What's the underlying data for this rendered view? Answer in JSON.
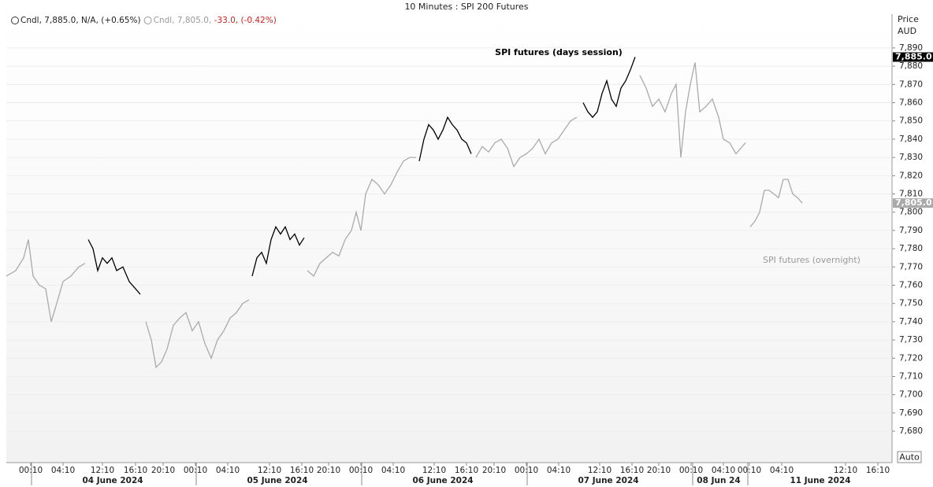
{
  "chart_data": {
    "type": "line",
    "title": "10 Minutes : SPI 200 Futures",
    "y_axis_label": [
      "Price",
      "AUD"
    ],
    "button": "Auto",
    "annotations": [
      {
        "text": "SPI futures (days session)",
        "color": "#000000"
      },
      {
        "text": "SPI futures (overnight)",
        "color": "#999999"
      }
    ],
    "xlim": [
      0,
      1124
    ],
    "xticks": [
      {
        "value": 31,
        "label": "00:10"
      },
      {
        "value": 72,
        "label": "04:10"
      },
      {
        "value": 122,
        "label": "12:10"
      },
      {
        "value": 164,
        "label": "16:10"
      },
      {
        "value": 199,
        "label": "20:10"
      },
      {
        "value": 240,
        "label": "00:10"
      },
      {
        "value": 281,
        "label": "04:10"
      },
      {
        "value": 334,
        "label": "12:10"
      },
      {
        "value": 375,
        "label": "16:10"
      },
      {
        "value": 409,
        "label": "20:10"
      },
      {
        "value": 450,
        "label": "00:10"
      },
      {
        "value": 491,
        "label": "04:10"
      },
      {
        "value": 543,
        "label": "12:10"
      },
      {
        "value": 584,
        "label": "16:10"
      },
      {
        "value": 619,
        "label": "20:10"
      },
      {
        "value": 660,
        "label": "00:10"
      },
      {
        "value": 701,
        "label": "04:10"
      },
      {
        "value": 753,
        "label": "12:10"
      },
      {
        "value": 794,
        "label": "16:10"
      },
      {
        "value": 828,
        "label": "20:10"
      },
      {
        "value": 869,
        "label": "00:10"
      },
      {
        "value": 910,
        "label": "04:10"
      },
      {
        "value": 943,
        "label": "00:10"
      },
      {
        "value": 984,
        "label": "04:10"
      },
      {
        "value": 1065,
        "label": "12:10"
      },
      {
        "value": 1106,
        "label": "16:10"
      }
    ],
    "date_labels": [
      "04 June 2024",
      "05 June 2024",
      "06 June 2024",
      "07 June 2024",
      "08 Jun 24",
      "11 June 2024"
    ],
    "ylim": [
      7662.8,
      7908.5
    ],
    "yticks": [
      {
        "value": 7680,
        "label": "7,680"
      },
      {
        "value": 7690,
        "label": "7,690"
      },
      {
        "value": 7700,
        "label": "7,700"
      },
      {
        "value": 7710,
        "label": "7,710"
      },
      {
        "value": 7720,
        "label": "7,720"
      },
      {
        "value": 7730,
        "label": "7,730"
      },
      {
        "value": 7740,
        "label": "7,740"
      },
      {
        "value": 7750,
        "label": "7,750"
      },
      {
        "value": 7760,
        "label": "7,760"
      },
      {
        "value": 7770,
        "label": "7,770"
      },
      {
        "value": 7780,
        "label": "7,780"
      },
      {
        "value": 7790,
        "label": "7,790"
      },
      {
        "value": 7800,
        "label": "7,800"
      },
      {
        "value": 7810,
        "label": "7,810"
      },
      {
        "value": 7820,
        "label": "7,820"
      },
      {
        "value": 7830,
        "label": "7,830"
      },
      {
        "value": 7840,
        "label": "7,840"
      },
      {
        "value": 7850,
        "label": "7,850"
      },
      {
        "value": 7860,
        "label": "7,860"
      },
      {
        "value": 7870,
        "label": "7,870"
      },
      {
        "value": 7880,
        "label": "7,880"
      },
      {
        "value": 7890,
        "label": "7,890"
      }
    ],
    "grid": true,
    "series": [
      {
        "name": "Cndl",
        "color": "#aaaaaa",
        "legend_parts": [
          {
            "text": ", 7,805.0,",
            "color": "#999999"
          },
          {
            "text": " -33.0, (-0.42%)",
            "color": "#d02020"
          }
        ],
        "last_value": 7805,
        "last_label": "7,805.0",
        "x": [
          0,
          12,
          22,
          28,
          34,
          42,
          50,
          57,
          64,
          72,
          82,
          92,
          100,
          102,
          177,
          184,
          190,
          197,
          204,
          212,
          220,
          228,
          236,
          244,
          252,
          260,
          268,
          276,
          284,
          292,
          300,
          308,
          310,
          382,
          390,
          398,
          406,
          414,
          422,
          430,
          438,
          444,
          450,
          456,
          464,
          472,
          480,
          488,
          496,
          504,
          512,
          520,
          522,
          596,
          604,
          612,
          620,
          628,
          636,
          644,
          652,
          660,
          668,
          676,
          684,
          692,
          700,
          708,
          716,
          724,
          728,
          804,
          812,
          820,
          828,
          836,
          844,
          850,
          856,
          862,
          868,
          874,
          880,
          888,
          896,
          904,
          910,
          918,
          926,
          932,
          938,
          940,
          944,
          950,
          956,
          962,
          968,
          974,
          980,
          986,
          992,
          998,
          1004,
          1010
        ],
        "values": [
          7765,
          7768,
          7775,
          7785,
          7765,
          7760,
          7758,
          7740,
          7750,
          7762,
          7765,
          7770,
          7772,
          null,
          7740,
          7730,
          7715,
          7718,
          7725,
          7738,
          7742,
          7745,
          7735,
          7740,
          7728,
          7720,
          7730,
          7735,
          7742,
          7745,
          7750,
          7752,
          null,
          7768,
          7765,
          7772,
          7775,
          7778,
          7776,
          7785,
          7790,
          7800,
          7790,
          7810,
          7818,
          7815,
          7810,
          7815,
          7822,
          7828,
          7830,
          7830,
          null,
          7830,
          7836,
          7833,
          7838,
          7840,
          7835,
          7825,
          7830,
          7832,
          7835,
          7840,
          7832,
          7838,
          7840,
          7845,
          7850,
          7852,
          null,
          7875,
          7868,
          7858,
          7862,
          7855,
          7865,
          7870,
          7830,
          7855,
          7870,
          7882,
          7855,
          7858,
          7862,
          7852,
          7840,
          7838,
          7832,
          7835,
          7838,
          null,
          7792,
          7795,
          7800,
          7812,
          7812,
          7810,
          7808,
          7818,
          7818,
          7810,
          7808,
          7805
        ]
      },
      {
        "name": "Cndl",
        "color": "#000000",
        "legend_parts": [
          {
            "text": ", 7,885.0, N/A, (+0.65%)",
            "color": "#222222"
          }
        ],
        "last_value": 7885,
        "last_label": "7,885.0",
        "x": [
          104,
          110,
          116,
          122,
          128,
          134,
          140,
          148,
          156,
          164,
          170,
          171,
          312,
          318,
          324,
          330,
          336,
          342,
          348,
          354,
          360,
          366,
          372,
          378,
          379,
          524,
          530,
          536,
          542,
          548,
          554,
          560,
          566,
          572,
          578,
          584,
          590,
          591,
          732,
          738,
          744,
          750,
          756,
          762,
          768,
          774,
          780,
          786,
          792,
          798
        ],
        "values": [
          7785,
          7780,
          7768,
          7775,
          7772,
          7775,
          7768,
          7770,
          7762,
          7758,
          7755,
          null,
          7765,
          7775,
          7778,
          7772,
          7785,
          7792,
          7788,
          7792,
          7785,
          7788,
          7782,
          7786,
          null,
          7828,
          7840,
          7848,
          7845,
          7840,
          7845,
          7852,
          7848,
          7845,
          7840,
          7838,
          7832,
          null,
          7860,
          7855,
          7852,
          7855,
          7865,
          7872,
          7862,
          7858,
          7868,
          7872,
          7878,
          7885
        ]
      }
    ]
  }
}
